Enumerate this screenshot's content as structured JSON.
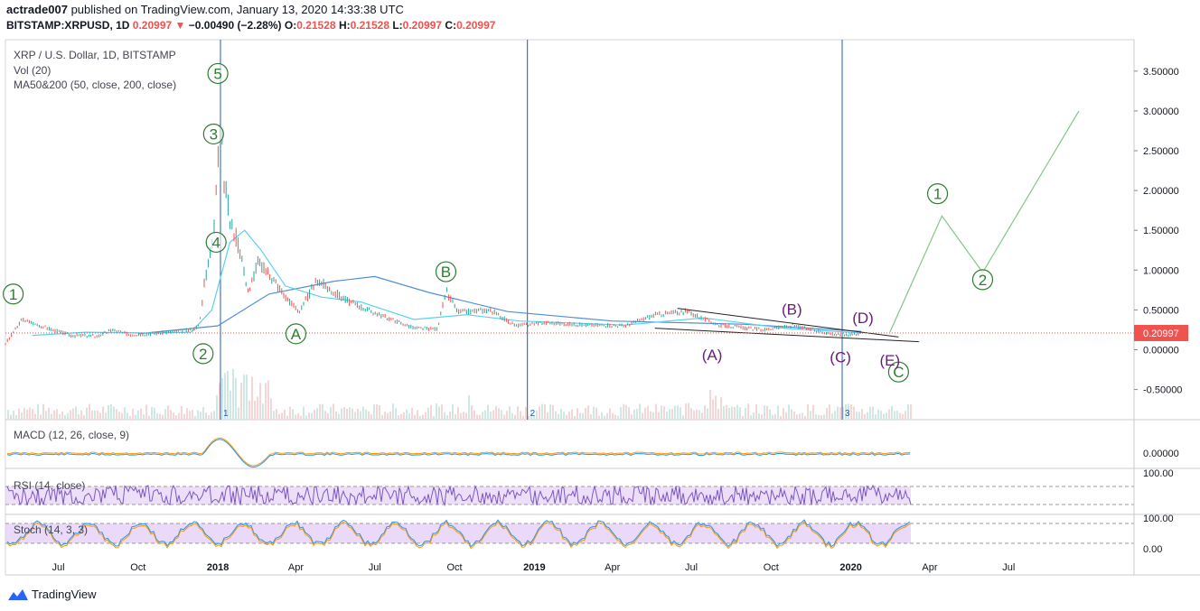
{
  "header": {
    "author": "actrade007",
    "published_line": " published on TradingView.com, January 13, 2020 14:33:38 UTC",
    "symbol_line": "BITSTAMP:XRPUSD, 1D",
    "last": "0.20997",
    "change_arrow": "▼",
    "change": "−0.00490 (−2.28%)",
    "o_label": "O:",
    "o": "0.21528",
    "h_label": "H:",
    "h": "0.21528",
    "l_label": "L:",
    "l": "0.20997",
    "c_label": "C:",
    "c": "0.20997"
  },
  "legend": {
    "instrument": "XRP / U.S. Dollar, 1D, BITSTAMP",
    "volume": "Vol (20)",
    "ma": "MA50&200 (50, close, 200, close)"
  },
  "panes": {
    "macd": "MACD (12, 26, close, 9)",
    "rsi": "RSI (14, close)",
    "stoch": "Stoch (14, 3, 3)"
  },
  "brand": "TradingView",
  "colors": {
    "up": "#26a69a",
    "down": "#ef5350",
    "ma50": "#5ad1f0",
    "ma200": "#4f8fd8",
    "wave_green": "#2e7d32",
    "wave_purple": "#6a1b7a",
    "projection": "#81c784",
    "vline": "#1e5fa8",
    "band": "#e1c9f5"
  },
  "chart_data": {
    "type": "line",
    "symbol": "BITSTAMP:XRPUSD",
    "timeframe": "1D",
    "price_axis": {
      "ticks": [
        "3.50000",
        "3.00000",
        "2.50000",
        "2.00000",
        "1.50000",
        "1.00000",
        "0.50000",
        "0.00000",
        "-0.50000"
      ],
      "last_price_label": "0.20997"
    },
    "time_axis": {
      "ticks": [
        "Jul",
        "Oct",
        "2018",
        "Apr",
        "Jul",
        "Oct",
        "2019",
        "Apr",
        "Jul",
        "Oct",
        "2020",
        "Apr",
        "Jul"
      ]
    },
    "price_path": [
      [
        "2017-05-01",
        0.08
      ],
      [
        "2017-05-20",
        0.38
      ],
      [
        "2017-06-15",
        0.28
      ],
      [
        "2017-07-15",
        0.18
      ],
      [
        "2017-08-15",
        0.17
      ],
      [
        "2017-09-01",
        0.25
      ],
      [
        "2017-09-20",
        0.19
      ],
      [
        "2017-10-15",
        0.2
      ],
      [
        "2017-11-15",
        0.23
      ],
      [
        "2017-12-01",
        0.25
      ],
      [
        "2017-12-10",
        0.3
      ],
      [
        "2017-12-15",
        0.8
      ],
      [
        "2017-12-21",
        1.1
      ],
      [
        "2017-12-28",
        1.6
      ],
      [
        "2018-01-04",
        3.05
      ],
      [
        "2018-01-08",
        2.1
      ],
      [
        "2018-01-15",
        1.6
      ],
      [
        "2018-01-25",
        1.3
      ],
      [
        "2018-02-05",
        0.7
      ],
      [
        "2018-02-15",
        1.1
      ],
      [
        "2018-03-01",
        0.95
      ],
      [
        "2018-03-20",
        0.65
      ],
      [
        "2018-04-05",
        0.48
      ],
      [
        "2018-04-25",
        0.88
      ],
      [
        "2018-05-10",
        0.75
      ],
      [
        "2018-06-01",
        0.6
      ],
      [
        "2018-07-01",
        0.46
      ],
      [
        "2018-08-15",
        0.27
      ],
      [
        "2018-09-10",
        0.26
      ],
      [
        "2018-09-21",
        0.72
      ],
      [
        "2018-10-05",
        0.47
      ],
      [
        "2018-11-10",
        0.5
      ],
      [
        "2018-12-10",
        0.3
      ],
      [
        "2019-01-10",
        0.34
      ],
      [
        "2019-03-01",
        0.31
      ],
      [
        "2019-04-15",
        0.3
      ],
      [
        "2019-05-20",
        0.44
      ],
      [
        "2019-06-25",
        0.48
      ],
      [
        "2019-08-01",
        0.31
      ],
      [
        "2019-09-20",
        0.25
      ],
      [
        "2019-10-25",
        0.3
      ],
      [
        "2019-12-01",
        0.22
      ],
      [
        "2019-12-20",
        0.18
      ],
      [
        "2020-01-13",
        0.20997
      ]
    ],
    "ma50": [
      [
        "2017-06-01",
        0.18
      ],
      [
        "2017-08-01",
        0.22
      ],
      [
        "2017-10-15",
        0.21
      ],
      [
        "2017-12-01",
        0.22
      ],
      [
        "2017-12-25",
        0.5
      ],
      [
        "2018-01-15",
        1.35
      ],
      [
        "2018-02-01",
        1.5
      ],
      [
        "2018-02-20",
        1.25
      ],
      [
        "2018-03-20",
        0.8
      ],
      [
        "2018-05-01",
        0.66
      ],
      [
        "2018-06-15",
        0.6
      ],
      [
        "2018-08-15",
        0.38
      ],
      [
        "2018-10-15",
        0.44
      ],
      [
        "2018-12-15",
        0.36
      ],
      [
        "2019-04-15",
        0.31
      ],
      [
        "2019-07-15",
        0.4
      ],
      [
        "2019-10-15",
        0.27
      ],
      [
        "2020-01-13",
        0.21
      ]
    ],
    "ma200": [
      [
        "2017-10-01",
        0.2
      ],
      [
        "2018-01-01",
        0.3
      ],
      [
        "2018-03-01",
        0.7
      ],
      [
        "2018-05-15",
        0.86
      ],
      [
        "2018-07-01",
        0.92
      ],
      [
        "2018-09-01",
        0.72
      ],
      [
        "2018-12-01",
        0.48
      ],
      [
        "2019-04-01",
        0.36
      ],
      [
        "2019-09-01",
        0.32
      ],
      [
        "2020-01-13",
        0.23
      ]
    ],
    "cycle_markers": [
      {
        "label": "1",
        "date": "2018-01-04"
      },
      {
        "label": "2",
        "date": "2018-12-24"
      },
      {
        "label": "3",
        "date": "2019-12-22"
      }
    ],
    "wave_labels": [
      {
        "label": "1",
        "date": "2017-05-10",
        "price": 0.7,
        "style": "circle-green"
      },
      {
        "label": "2",
        "date": "2017-12-15",
        "price": -0.05,
        "style": "circle-green"
      },
      {
        "label": "3",
        "date": "2017-12-27",
        "price": 2.71,
        "style": "circle-green"
      },
      {
        "label": "4",
        "date": "2017-12-30",
        "price": 1.35,
        "style": "circle-green"
      },
      {
        "label": "5",
        "date": "2018-01-01",
        "price": 3.47,
        "style": "circle-green"
      },
      {
        "label": "A",
        "date": "2018-04-01",
        "price": 0.2,
        "style": "circle-green"
      },
      {
        "label": "B",
        "date": "2018-09-21",
        "price": 0.98,
        "style": "circle-green"
      },
      {
        "label": "C",
        "date": "2020-02-25",
        "price": -0.28,
        "style": "circle-green"
      },
      {
        "label": "1",
        "date": "2020-04-10",
        "price": 1.96,
        "style": "circle-green"
      },
      {
        "label": "2",
        "date": "2020-06-01",
        "price": 0.88,
        "style": "circle-green"
      },
      {
        "label": "(A)",
        "date": "2019-07-25",
        "price": -0.06,
        "style": "text-purple"
      },
      {
        "label": "(B)",
        "date": "2019-10-25",
        "price": 0.51,
        "style": "text-purple"
      },
      {
        "label": "(C)",
        "date": "2019-12-20",
        "price": -0.09,
        "style": "text-purple"
      },
      {
        "label": "(D)",
        "date": "2020-01-15",
        "price": 0.4,
        "style": "text-purple"
      },
      {
        "label": "(E)",
        "date": "2020-02-15",
        "price": -0.13,
        "style": "text-purple"
      }
    ],
    "projection_path": [
      [
        "2020-02-15",
        0.22
      ],
      [
        "2020-04-15",
        1.68
      ],
      [
        "2020-06-01",
        0.97
      ],
      [
        "2020-09-20",
        3.0
      ]
    ],
    "triangle_lines": [
      {
        "from": [
          "2019-06-15",
          0.52
        ],
        "to": [
          "2020-02-25",
          0.16
        ]
      },
      {
        "from": [
          "2019-05-20",
          0.27
        ],
        "to": [
          "2020-03-20",
          0.1
        ]
      }
    ],
    "indicator_axes": {
      "macd": [
        "0.00000"
      ],
      "rsi": [
        "100.00"
      ],
      "stoch": [
        "100.00",
        "0.00"
      ]
    }
  }
}
